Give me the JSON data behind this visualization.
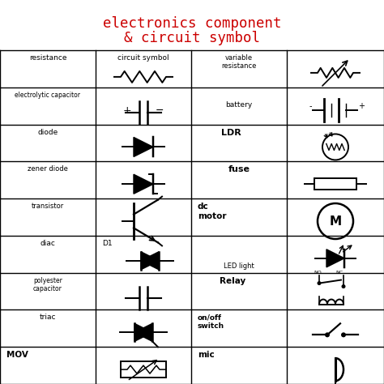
{
  "title_line1": "electronics component",
  "title_line2": "& circuit symbol",
  "title_color": "#cc0000",
  "bg_color": "#ffffff",
  "col_labels": {
    "r0": [
      "resistance",
      "circuit symbol",
      "variable\nresistance",
      ""
    ],
    "r1": [
      "electrolytic capacitor",
      "",
      "battery",
      ""
    ],
    "r2": [
      "diode",
      "",
      "LDR",
      ""
    ],
    "r3": [
      "zener diode",
      "",
      "fuse",
      ""
    ],
    "r4": [
      "transistor",
      "",
      "dc\nmotor",
      ""
    ],
    "r5": [
      "diac",
      "D1",
      "LED light",
      ""
    ],
    "r6": [
      "polyester\ncapacitor",
      "",
      "Relay",
      ""
    ],
    "r7": [
      "triac",
      "",
      "on/off\nswitch",
      ""
    ],
    "r8": [
      "MOV",
      "",
      "mic",
      ""
    ]
  }
}
